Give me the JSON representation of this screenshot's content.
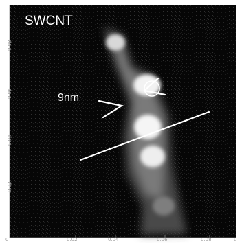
{
  "image": {
    "title": "SWCNT",
    "measurement_label": "9nm",
    "x_ticks": [
      "0.02",
      "0.04",
      "0.06",
      "0.08"
    ],
    "x_unit_fragment": "u",
    "y_ticks": [
      "0.08",
      "0.06",
      "0.04",
      "0.02"
    ],
    "origin_labels": [
      "0"
    ],
    "colors": {
      "background": "#050505",
      "markup": "#ffffff",
      "axis": "#888888"
    }
  }
}
